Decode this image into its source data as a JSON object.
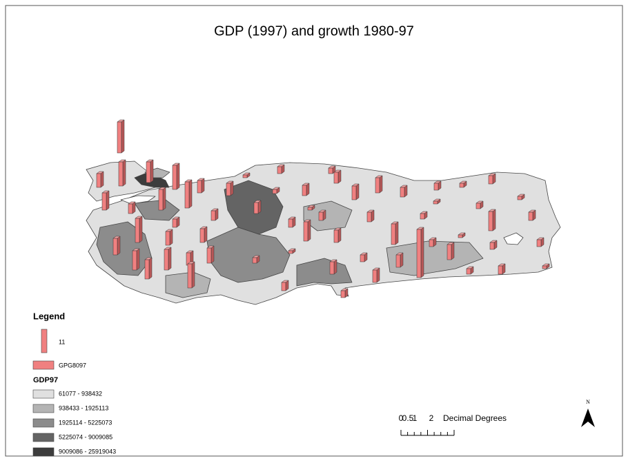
{
  "title": "GDP (1997) and growth 1980-97",
  "legend": {
    "title": "Legend",
    "symbol_value": "11",
    "symbol_field": "GPG8097",
    "class_field": "GDP97",
    "classes": [
      {
        "label": "61077 - 938432",
        "color": "#e0e0e0"
      },
      {
        "label": "938433 - 1925113",
        "color": "#b4b4b4"
      },
      {
        "label": "1925114 - 5225073",
        "color": "#8c8c8c"
      },
      {
        "label": "5225074 - 9009085",
        "color": "#646464"
      },
      {
        "label": "9009086 - 25919043",
        "color": "#3c3c3c"
      }
    ]
  },
  "scale": {
    "ticks": [
      "0",
      "0.5",
      "1",
      "2"
    ],
    "units": "Decimal Degrees"
  },
  "north": "N"
}
